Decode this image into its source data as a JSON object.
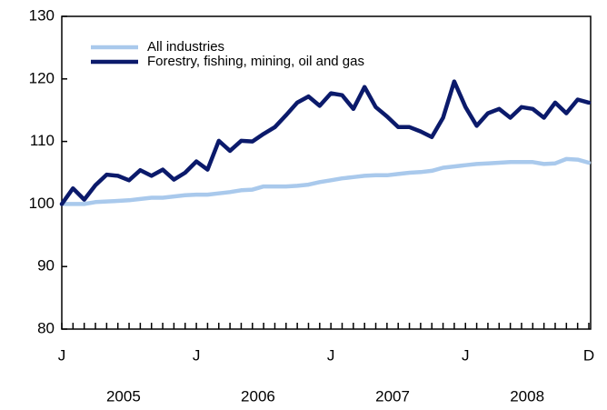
{
  "chart_data": {
    "type": "line",
    "categories": [
      "J",
      null,
      null,
      null,
      null,
      null,
      null,
      null,
      null,
      null,
      null,
      null,
      "J",
      null,
      null,
      null,
      null,
      null,
      null,
      null,
      null,
      null,
      null,
      null,
      "J",
      null,
      null,
      null,
      null,
      null,
      null,
      null,
      null,
      null,
      null,
      null,
      "J",
      null,
      null,
      null,
      null,
      null,
      null,
      null,
      null,
      null,
      null,
      "D"
    ],
    "years": [
      "2005",
      "2006",
      "2007",
      "2008"
    ],
    "series": [
      {
        "name": "All industries",
        "color": "#a9c9ec",
        "values": [
          100,
          100,
          100,
          100.3,
          100.4,
          100.5,
          100.6,
          100.8,
          101,
          101,
          101.2,
          101.4,
          101.5,
          101.5,
          101.7,
          101.9,
          102.2,
          102.3,
          102.8,
          102.8,
          102.8,
          102.9,
          103.1,
          103.5,
          103.8,
          104.1,
          104.3,
          104.5,
          104.6,
          104.6,
          104.8,
          105,
          105.1,
          105.3,
          105.8,
          106,
          106.2,
          106.4,
          106.5,
          106.6,
          106.7,
          106.7,
          106.7,
          106.4,
          106.5,
          107.2,
          107.1,
          106.6
        ]
      },
      {
        "name": "Forestry, fishing, mining, oil and gas",
        "color": "#0b1a6b",
        "values": [
          100,
          102.5,
          100.7,
          103,
          104.7,
          104.5,
          103.8,
          105.4,
          104.5,
          105.5,
          103.9,
          105,
          106.8,
          105.5,
          110.1,
          108.5,
          110.1,
          110,
          111.2,
          112.3,
          114.2,
          116.2,
          117.2,
          115.7,
          117.7,
          117.4,
          115.2,
          118.7,
          115.5,
          114,
          112.3,
          112.3,
          111.6,
          110.7,
          113.8,
          119.6,
          115.5,
          112.5,
          114.5,
          115.2,
          113.8,
          115.5,
          115.2,
          113.8,
          116.2,
          114.5,
          116.7,
          116.2
        ]
      }
    ],
    "ylim": [
      80,
      130
    ],
    "yticks": [
      80,
      90,
      100,
      110,
      120,
      130
    ],
    "grid": false,
    "legend": "top-left"
  }
}
